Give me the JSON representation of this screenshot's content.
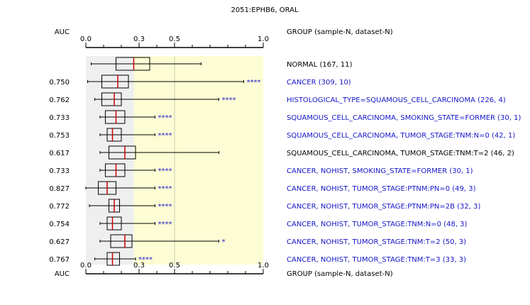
{
  "chart_data": {
    "type": "boxplot",
    "title": "2051:EPHB6, ORAL",
    "auc_header": "AUC",
    "group_header": "GROUP (sample-N, dataset-N)",
    "xlim": [
      0,
      1
    ],
    "xticks": [
      {
        "value": 0.0,
        "label": "0.0"
      },
      {
        "value": 0.3,
        "label": "0.3"
      },
      {
        "value": 0.5,
        "label": "0.5"
      },
      {
        "value": 1.0,
        "label": "1.0"
      }
    ],
    "shaded_regions": [
      {
        "from": 0.0,
        "to": 0.27,
        "color": "#efefef"
      },
      {
        "from": 0.27,
        "to": 1.0,
        "color": "#fdfdd5"
      }
    ],
    "reference_lines": [
      0.5
    ],
    "colors": {
      "reference": "#000000",
      "significant": "#1515c8",
      "median": "#cc0000",
      "box": "#000000"
    },
    "rows": [
      {
        "auc": "",
        "label": "NORMAL (167, 11)",
        "color": "reference",
        "stars": "",
        "whisker_low": 0.03,
        "q1": 0.17,
        "median": 0.27,
        "q3": 0.36,
        "whisker_high": 0.65
      },
      {
        "auc": "0.750",
        "label": "CANCER (309, 10)",
        "color": "significant",
        "stars": "****",
        "whisker_low": 0.01,
        "q1": 0.09,
        "median": 0.18,
        "q3": 0.24,
        "whisker_high": 0.89
      },
      {
        "auc": "0.762",
        "label": "HISTOLOGICAL_TYPE=SQUAMOUS_CELL_CARCINOMA (226, 4)",
        "color": "significant",
        "stars": "****",
        "whisker_low": 0.05,
        "q1": 0.09,
        "median": 0.16,
        "q3": 0.2,
        "whisker_high": 0.75
      },
      {
        "auc": "0.733",
        "label": "SQUAMOUS_CELL_CARCINOMA, SMOKING_STATE=FORMER (30, 1)",
        "color": "significant",
        "stars": "****",
        "whisker_low": 0.08,
        "q1": 0.11,
        "median": 0.17,
        "q3": 0.22,
        "whisker_high": 0.39
      },
      {
        "auc": "0.753",
        "label": "SQUAMOUS_CELL_CARCINOMA, TUMOR_STAGE:TNM:N=0 (42, 1)",
        "color": "significant",
        "stars": "****",
        "whisker_low": 0.08,
        "q1": 0.12,
        "median": 0.15,
        "q3": 0.2,
        "whisker_high": 0.39
      },
      {
        "auc": "0.617",
        "label": "SQUAMOUS_CELL_CARCINOMA, TUMOR_STAGE:TNM:T=2 (46, 2)",
        "color": "reference",
        "stars": "",
        "whisker_low": 0.08,
        "q1": 0.13,
        "median": 0.22,
        "q3": 0.28,
        "whisker_high": 0.75
      },
      {
        "auc": "0.733",
        "label": "CANCER, NOHIST, SMOKING_STATE=FORMER (30, 1)",
        "color": "significant",
        "stars": "****",
        "whisker_low": 0.08,
        "q1": 0.11,
        "median": 0.17,
        "q3": 0.22,
        "whisker_high": 0.39
      },
      {
        "auc": "0.827",
        "label": "CANCER, NOHIST, TUMOR_STAGE:PTNM:PN=0 (49, 3)",
        "color": "significant",
        "stars": "****",
        "whisker_low": 0.0,
        "q1": 0.07,
        "median": 0.12,
        "q3": 0.17,
        "whisker_high": 0.39
      },
      {
        "auc": "0.772",
        "label": "CANCER, NOHIST, TUMOR_STAGE:PTNM:PN=2B (32, 3)",
        "color": "significant",
        "stars": "****",
        "whisker_low": 0.02,
        "q1": 0.13,
        "median": 0.16,
        "q3": 0.19,
        "whisker_high": 0.39
      },
      {
        "auc": "0.754",
        "label": "CANCER, NOHIST, TUMOR_STAGE:TNM:N=0 (48, 3)",
        "color": "significant",
        "stars": "****",
        "whisker_low": 0.08,
        "q1": 0.12,
        "median": 0.15,
        "q3": 0.2,
        "whisker_high": 0.39
      },
      {
        "auc": "0.627",
        "label": "CANCER, NOHIST, TUMOR_STAGE:TNM:T=2 (50, 3)",
        "color": "significant",
        "stars": "*",
        "whisker_low": 0.08,
        "q1": 0.14,
        "median": 0.22,
        "q3": 0.26,
        "whisker_high": 0.75
      },
      {
        "auc": "0.767",
        "label": "CANCER, NOHIST, TUMOR_STAGE:TNM:T=3 (33, 3)",
        "color": "significant",
        "stars": "****",
        "whisker_low": 0.05,
        "q1": 0.12,
        "median": 0.15,
        "q3": 0.19,
        "whisker_high": 0.28
      }
    ]
  }
}
